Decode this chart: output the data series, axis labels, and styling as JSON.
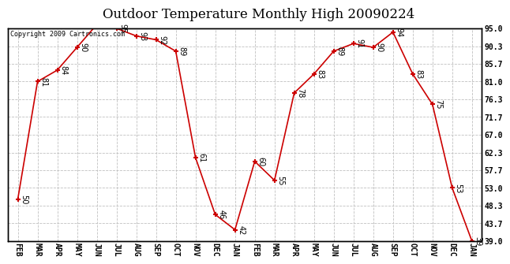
{
  "title": "Outdoor Temperature Monthly High 20090224",
  "copyright": "Copyright 2009 Cartronics.com",
  "months": [
    "FEB",
    "MAR",
    "APR",
    "MAY",
    "JUN",
    "JUL",
    "AUG",
    "SEP",
    "OCT",
    "NOV",
    "DEC",
    "JAN",
    "FEB",
    "MAR",
    "APR",
    "MAY",
    "JUN",
    "JUL",
    "AUG",
    "SEP",
    "OCT",
    "NOV",
    "DEC",
    "JAN"
  ],
  "values": [
    50,
    81,
    84,
    90,
    96,
    95,
    93,
    92,
    89,
    61,
    46,
    42,
    60,
    55,
    78,
    83,
    89,
    91,
    90,
    94,
    83,
    75,
    53,
    39
  ],
  "ylim_min": 39.0,
  "ylim_max": 95.0,
  "yticks": [
    39.0,
    43.7,
    48.3,
    53.0,
    57.7,
    62.3,
    67.0,
    71.7,
    76.3,
    81.0,
    85.7,
    90.3,
    95.0
  ],
  "line_color": "#cc0000",
  "bg_color": "#ffffff",
  "grid_color": "#c0c0c0",
  "title_fontsize": 12,
  "tick_fontsize": 7,
  "label_fontsize": 7
}
